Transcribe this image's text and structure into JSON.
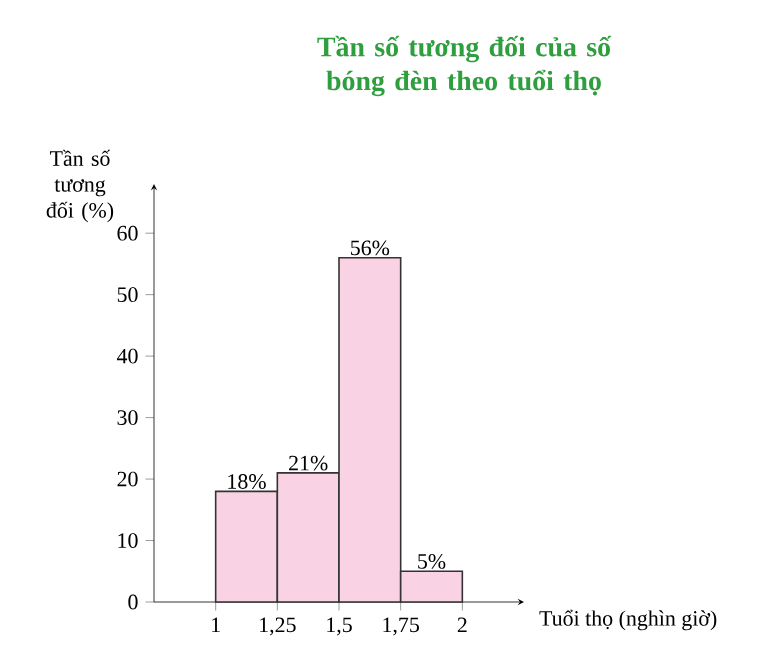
{
  "chart_data": {
    "type": "histogram",
    "title": "Tần số tương đối của số bóng đèn theo tuổi thọ",
    "ylabel": "Tần số tương đối (%)",
    "xlabel": "Tuổi thọ (nghìn giờ)",
    "bins": [
      1,
      1.25,
      1.5,
      1.75,
      2
    ],
    "values": [
      18,
      21,
      56,
      5
    ],
    "value_labels": [
      "18%",
      "21%",
      "56%",
      "5%"
    ],
    "color": "#f9d3e3",
    "xlim": [
      0.75,
      2.25
    ],
    "ylim": [
      0,
      68
    ],
    "xticks": [
      1,
      {
        "value": 1.25,
        "label": "1,25"
      },
      {
        "value": 1.5,
        "label": "1,5"
      },
      {
        "value": 1.75,
        "label": "1,75"
      },
      2
    ],
    "yticks": [
      0,
      10,
      20,
      30,
      40,
      50,
      60
    ],
    "grid": false
  }
}
